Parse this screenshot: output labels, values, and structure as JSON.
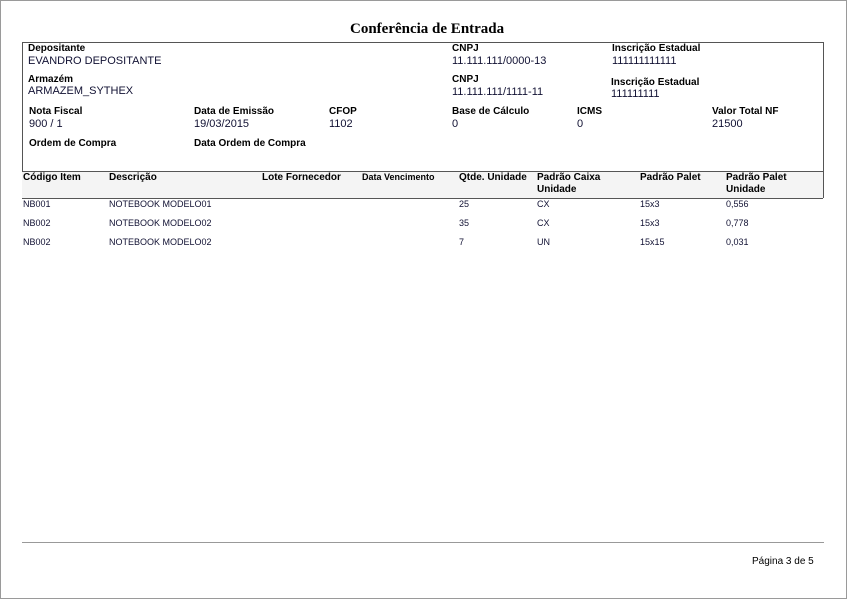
{
  "title": "Conferência de Entrada",
  "header": {
    "depositante_label": "Depositante",
    "depositante": "EVANDRO DEPOSITANTE",
    "cnpj1_label": "CNPJ",
    "cnpj1": "11.111.111/0000-13",
    "ie1_label": "Inscrição Estadual",
    "ie1": "111111111111",
    "armazem_label": "Armazém",
    "armazem": "ARMAZEM_SYTHEX",
    "cnpj2_label": "CNPJ",
    "cnpj2": "11.111.111/1111-11",
    "ie2_label": "Inscrição Estadual",
    "ie2": "111111111",
    "nf_label": "Nota Fiscal",
    "nf": "900 / 1",
    "emissao_label": "Data de Emissão",
    "emissao": "19/03/2015",
    "cfop_label": "CFOP",
    "cfop": "1102",
    "base_label": "Base de Cálculo",
    "base": "0",
    "icms_label": "ICMS",
    "icms": "0",
    "total_label": "Valor Total NF",
    "total": "21500",
    "oc_label": "Ordem de Compra",
    "doc_label": "Data Ordem de Compra"
  },
  "table": {
    "columns": [
      "Código Item",
      "Descrição",
      "Lote Fornecedor",
      "Data Vencimento",
      "Qtde. Unidade",
      "Padrão Caixa\nUnidade",
      "Padrão Palet",
      "Padrão Palet\nUnidade"
    ],
    "rows": [
      [
        "NB001",
        "NOTEBOOK MODELO01",
        "",
        "",
        "25",
        "CX",
        "15x3",
        "0,556"
      ],
      [
        "NB002",
        "NOTEBOOK MODELO02",
        "",
        "",
        "35",
        "CX",
        "15x3",
        "0,778"
      ],
      [
        "NB002",
        "NOTEBOOK MODELO02",
        "",
        "",
        "7",
        "UN",
        "15x15",
        "0,031"
      ]
    ]
  },
  "footer": {
    "page": "Página 3 de 5"
  }
}
